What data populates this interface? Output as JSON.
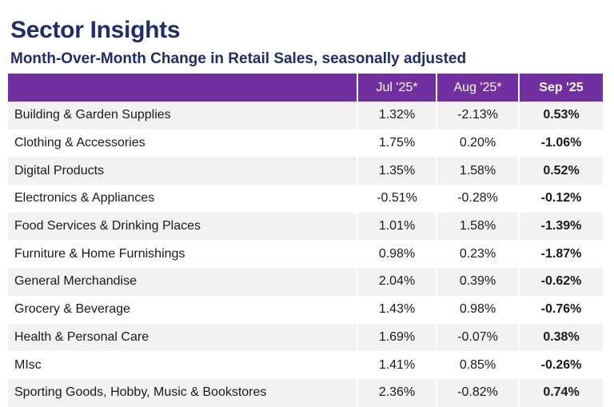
{
  "header": {
    "title": "Sector Insights",
    "subtitle": "Month-Over-Month Change in Retail Sales, seasonally adjusted"
  },
  "colors": {
    "title": "#1f2d6b",
    "header_bg": "#7030a0",
    "row_alt_bg": "#f2f2f2"
  },
  "chart_data": {
    "type": "table",
    "title": "Sector Insights",
    "subtitle": "Month-Over-Month Change in Retail Sales, seasonally adjusted",
    "columns": [
      "",
      "Jul '25*",
      "Aug '25*",
      "Sep '25"
    ],
    "rows": [
      [
        "Building & Garden Supplies",
        "1.32%",
        "-2.13%",
        "0.53%"
      ],
      [
        "Clothing & Accessories",
        "1.75%",
        "0.20%",
        "-1.06%"
      ],
      [
        "Digital Products",
        "1.35%",
        "1.58%",
        "0.52%"
      ],
      [
        "Electronics & Appliances",
        "-0.51%",
        "-0.28%",
        "-0.12%"
      ],
      [
        "Food Services & Drinking Places",
        "1.01%",
        "1.58%",
        "-1.39%"
      ],
      [
        "Furniture & Home Furnishings",
        "0.98%",
        "0.23%",
        "-1.87%"
      ],
      [
        "General Merchandise",
        "2.04%",
        "0.39%",
        "-0.62%"
      ],
      [
        "Grocery & Beverage",
        "1.43%",
        "0.98%",
        "-0.76%"
      ],
      [
        "Health & Personal Care",
        "1.69%",
        "-0.07%",
        "0.38%"
      ],
      [
        "MIsc",
        "1.41%",
        "0.85%",
        "-0.26%"
      ],
      [
        "Sporting Goods, Hobby, Music & Bookstores",
        "2.36%",
        "-0.82%",
        "0.74%"
      ]
    ],
    "series": [
      {
        "name": "Jul '25*",
        "values": [
          1.32,
          1.75,
          1.35,
          -0.51,
          1.01,
          0.98,
          2.04,
          1.43,
          1.69,
          1.41,
          2.36
        ]
      },
      {
        "name": "Aug '25*",
        "values": [
          -2.13,
          0.2,
          1.58,
          -0.28,
          1.58,
          0.23,
          0.39,
          0.98,
          -0.07,
          0.85,
          -0.82
        ]
      },
      {
        "name": "Sep '25",
        "values": [
          0.53,
          -1.06,
          0.52,
          -0.12,
          -1.39,
          -1.87,
          -0.62,
          -0.76,
          0.38,
          -0.26,
          0.74
        ]
      }
    ],
    "categories": [
      "Building & Garden Supplies",
      "Clothing & Accessories",
      "Digital Products",
      "Electronics & Appliances",
      "Food Services & Drinking Places",
      "Furniture & Home Furnishings",
      "General Merchandise",
      "Grocery & Beverage",
      "Health & Personal Care",
      "MIsc",
      "Sporting Goods, Hobby, Music & Bookstores"
    ]
  }
}
